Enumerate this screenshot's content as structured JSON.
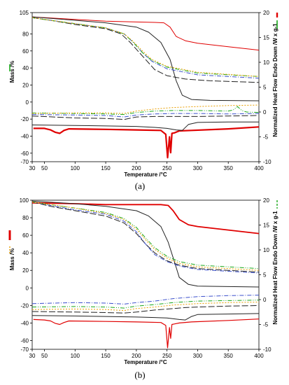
{
  "chart_data": [
    {
      "type": "line",
      "caption": "(a)",
      "xlabel": "Temperature /°C",
      "ylabel": "Mass /%",
      "y2label": "Normalized Heat Flow Endo Down /W x g-1",
      "xlim": [
        30,
        400
      ],
      "ylim": [
        -70,
        105
      ],
      "y2lim": [
        -10,
        20
      ],
      "xticks": [
        30,
        50,
        100,
        150,
        200,
        250,
        300,
        350,
        400
      ],
      "yticks": [
        105,
        80,
        60,
        40,
        20,
        0,
        -20,
        -40,
        -60,
        -70
      ],
      "y2ticks": [
        20,
        15,
        10,
        5,
        0,
        -5,
        -10
      ],
      "grid": false,
      "legend": "side markers",
      "legend_colors": {
        "left": "#19a819",
        "right_top": "#e00000",
        "right_bottom": "#19a819"
      },
      "series": [
        {
          "axis": "left",
          "color": "#e00000",
          "dash": "",
          "width": 1,
          "x": [
            30,
            100,
            150,
            200,
            230,
            245,
            255,
            265,
            280,
            300,
            350,
            400
          ],
          "y": [
            100,
            97,
            95,
            94,
            93.5,
            93,
            88,
            77,
            72,
            69,
            65,
            61
          ]
        },
        {
          "axis": "left",
          "color": "#222222",
          "dash": "",
          "width": 1,
          "x": [
            30,
            100,
            150,
            200,
            220,
            240,
            255,
            265,
            275,
            290,
            320,
            400
          ],
          "y": [
            100,
            96,
            93,
            88,
            82,
            70,
            50,
            25,
            8,
            3,
            2,
            1.5
          ]
        },
        {
          "axis": "left",
          "color": "#222222",
          "dash": "9,3",
          "width": 1,
          "x": [
            30,
            60,
            100,
            150,
            175,
            190,
            205,
            215,
            230,
            250,
            280,
            320,
            400
          ],
          "y": [
            99,
            96,
            91,
            86,
            80,
            70,
            58,
            50,
            38,
            31,
            27,
            25,
            23
          ]
        },
        {
          "axis": "left",
          "color": "#3a4fcc",
          "dash": "6,2,1,2",
          "width": 1,
          "x": [
            30,
            60,
            100,
            150,
            180,
            195,
            210,
            225,
            250,
            300,
            400
          ],
          "y": [
            99,
            96,
            92,
            87,
            80,
            70,
            58,
            48,
            39,
            32,
            28
          ]
        },
        {
          "axis": "left",
          "color": "#19a819",
          "dash": "6,2,1,2,1,2",
          "width": 1,
          "x": [
            30,
            60,
            100,
            150,
            180,
            195,
            210,
            225,
            250,
            300,
            400
          ],
          "y": [
            99,
            96,
            92,
            87,
            80,
            70,
            58,
            49,
            41,
            34,
            30
          ]
        },
        {
          "axis": "left",
          "color": "#e8a000",
          "dash": "2,2",
          "width": 1,
          "x": [
            30,
            60,
            100,
            150,
            180,
            195,
            210,
            225,
            250,
            300,
            400
          ],
          "y": [
            99,
            96,
            92,
            87,
            80,
            71,
            60,
            50,
            42,
            35,
            30
          ]
        },
        {
          "axis": "right",
          "color": "#e00000",
          "dash": "",
          "width": 2.2,
          "x": [
            32,
            50,
            60,
            68,
            75,
            82,
            90,
            150,
            200,
            240,
            248,
            251,
            254,
            256,
            258,
            262,
            270,
            290,
            350,
            400
          ],
          "y": [
            -3.3,
            -3.3,
            -3.6,
            -4.1,
            -4.3,
            -3.7,
            -3.4,
            -3.5,
            -3.6,
            -3.7,
            -4.5,
            -9.2,
            -5.0,
            -8.2,
            -4.3,
            -4.2,
            -3.8,
            -3.7,
            -3.4,
            -3.0
          ]
        },
        {
          "axis": "right",
          "color": "#222222",
          "dash": "",
          "width": 1,
          "x": [
            30,
            100,
            150,
            200,
            230,
            250,
            265,
            275,
            285,
            300,
            350,
            400
          ],
          "y": [
            -2.6,
            -2.7,
            -2.8,
            -2.9,
            -3.1,
            -3.3,
            -3.6,
            -3.7,
            -2.5,
            -2.1,
            -2.0,
            -2.0
          ]
        },
        {
          "axis": "right",
          "color": "#222222",
          "dash": "9,3",
          "width": 1,
          "x": [
            30,
            100,
            150,
            180,
            200,
            230,
            260,
            300,
            350,
            400
          ],
          "y": [
            -0.8,
            -1.2,
            -1.3,
            -1.5,
            -1.0,
            -0.9,
            -0.9,
            -0.9,
            -0.8,
            -0.7
          ]
        },
        {
          "axis": "right",
          "color": "#3a4fcc",
          "dash": "6,2,1,2",
          "width": 1,
          "x": [
            30,
            100,
            150,
            180,
            200,
            230,
            260,
            300,
            350,
            400
          ],
          "y": [
            -0.5,
            -0.6,
            -0.7,
            -1.0,
            -0.6,
            -0.4,
            -0.3,
            -0.3,
            -0.4,
            -0.3
          ]
        },
        {
          "axis": "right",
          "color": "#19a819",
          "dash": "6,2,1,2,1,2",
          "width": 1,
          "x": [
            30,
            100,
            150,
            180,
            200,
            230,
            260,
            300,
            350,
            358,
            365,
            372,
            380,
            400
          ],
          "y": [
            -0.2,
            -0.3,
            -0.4,
            -0.5,
            -0.1,
            0.2,
            0.3,
            0.3,
            0.2,
            0.4,
            1.1,
            0.3,
            0.0,
            -0.1
          ]
        },
        {
          "axis": "right",
          "color": "#e8a000",
          "dash": "2,2",
          "width": 1,
          "x": [
            30,
            100,
            150,
            180,
            200,
            230,
            260,
            300,
            350,
            400
          ],
          "y": [
            -0.3,
            -0.2,
            -0.2,
            -0.3,
            0.2,
            0.6,
            0.9,
            1.1,
            1.3,
            1.4
          ]
        }
      ]
    },
    {
      "type": "line",
      "caption": "(b)",
      "xlabel": "Temperature /°C",
      "ylabel": "Mass /%",
      "y2label": "Normalized Heat Flow Endo Down /W x g-1",
      "xlim": [
        30,
        400
      ],
      "ylim": [
        -70,
        100
      ],
      "y2lim": [
        -10,
        20
      ],
      "xticks": [
        30,
        50,
        100,
        150,
        200,
        250,
        300,
        350,
        400
      ],
      "yticks": [
        100,
        80,
        60,
        40,
        20,
        0,
        -20,
        -40,
        -60,
        -70
      ],
      "y2ticks": [
        20,
        15,
        10,
        5,
        0,
        -5,
        -10
      ],
      "grid": false,
      "legend": "side markers",
      "legend_colors": {
        "left_top": "#e00000",
        "left_bottom": "#e8a000",
        "right": "#19a819"
      },
      "series": [
        {
          "axis": "left",
          "color": "#e00000",
          "dash": "",
          "width": 1.8,
          "x": [
            30,
            100,
            150,
            200,
            240,
            252,
            260,
            270,
            285,
            300,
            350,
            400
          ],
          "y": [
            97,
            96,
            95,
            95,
            95,
            94,
            88,
            78,
            72,
            70,
            66,
            62
          ]
        },
        {
          "axis": "left",
          "color": "#222222",
          "dash": "",
          "width": 1,
          "x": [
            30,
            100,
            150,
            200,
            220,
            240,
            252,
            262,
            270,
            285,
            300,
            400
          ],
          "y": [
            99,
            96,
            93,
            88,
            82,
            70,
            52,
            30,
            12,
            4,
            2,
            1
          ]
        },
        {
          "axis": "left",
          "color": "#222222",
          "dash": "9,3",
          "width": 1,
          "x": [
            30,
            60,
            100,
            150,
            180,
            200,
            215,
            230,
            250,
            270,
            300,
            350,
            400
          ],
          "y": [
            98,
            93,
            88,
            82,
            74,
            62,
            50,
            40,
            31,
            26,
            22,
            20,
            18
          ]
        },
        {
          "axis": "left",
          "color": "#3a4fcc",
          "dash": "6,2,1,2",
          "width": 1,
          "x": [
            30,
            60,
            100,
            150,
            180,
            200,
            215,
            230,
            250,
            270,
            300,
            350,
            400
          ],
          "y": [
            98,
            94,
            89,
            84,
            76,
            64,
            50,
            38,
            30,
            25,
            21,
            19,
            17
          ]
        },
        {
          "axis": "left",
          "color": "#19a819",
          "dash": "6,2,1,2,1,2",
          "width": 1,
          "x": [
            30,
            60,
            100,
            150,
            180,
            200,
            215,
            230,
            250,
            270,
            300,
            350,
            400
          ],
          "y": [
            98,
            95,
            91,
            86,
            79,
            69,
            57,
            46,
            36,
            30,
            26,
            24,
            22
          ]
        },
        {
          "axis": "left",
          "color": "#e8a000",
          "dash": "2,2",
          "width": 1,
          "x": [
            30,
            60,
            100,
            150,
            180,
            200,
            215,
            230,
            250,
            270,
            300,
            350,
            400
          ],
          "y": [
            98,
            95,
            91,
            85,
            78,
            67,
            55,
            44,
            34,
            28,
            24,
            22,
            20
          ]
        },
        {
          "axis": "right",
          "color": "#e00000",
          "dash": "",
          "width": 1.2,
          "x": [
            32,
            50,
            60,
            68,
            75,
            82,
            90,
            150,
            200,
            240,
            248,
            251,
            254,
            256,
            258,
            262,
            270,
            290,
            350,
            400
          ],
          "y": [
            -4.0,
            -4.1,
            -4.3,
            -4.8,
            -5.0,
            -4.6,
            -4.3,
            -4.4,
            -4.5,
            -4.6,
            -5.2,
            -9.7,
            -5.6,
            -7.8,
            -5.0,
            -4.9,
            -4.7,
            -4.5,
            -4.2,
            -3.9
          ]
        },
        {
          "axis": "right",
          "color": "#222222",
          "dash": "",
          "width": 1,
          "x": [
            30,
            100,
            150,
            200,
            230,
            250,
            270,
            280,
            290,
            300,
            350,
            400
          ],
          "y": [
            -3.2,
            -3.3,
            -3.4,
            -3.5,
            -3.6,
            -3.7,
            -4.0,
            -4.1,
            -3.4,
            -3.0,
            -2.9,
            -2.8
          ]
        },
        {
          "axis": "right",
          "color": "#222222",
          "dash": "9,3",
          "width": 1,
          "x": [
            30,
            100,
            150,
            180,
            200,
            230,
            260,
            280,
            300,
            350,
            400
          ],
          "y": [
            -2.4,
            -2.5,
            -2.6,
            -2.7,
            -2.5,
            -2.1,
            -1.8,
            -1.6,
            -1.5,
            -1.3,
            -1.2
          ]
        },
        {
          "axis": "right",
          "color": "#3a4fcc",
          "dash": "6,2,1,2",
          "width": 1,
          "x": [
            30,
            100,
            150,
            180,
            200,
            230,
            260,
            300,
            350,
            400
          ],
          "y": [
            -0.8,
            -0.6,
            -0.7,
            -0.9,
            -0.6,
            -0.3,
            0.2,
            0.6,
            0.8,
            0.9
          ]
        },
        {
          "axis": "right",
          "color": "#19a819",
          "dash": "6,2,1,2,1,2",
          "width": 1,
          "x": [
            30,
            100,
            150,
            180,
            200,
            230,
            260,
            300,
            350,
            400
          ],
          "y": [
            -1.5,
            -1.4,
            -1.5,
            -1.7,
            -1.3,
            -1.0,
            -0.6,
            -0.3,
            -0.2,
            -0.1
          ]
        },
        {
          "axis": "right",
          "color": "#e8a000",
          "dash": "2,2",
          "width": 1,
          "x": [
            30,
            100,
            150,
            180,
            200,
            230,
            260,
            300,
            350,
            400
          ],
          "y": [
            -2.0,
            -1.9,
            -2.0,
            -2.2,
            -1.8,
            -1.5,
            -1.1,
            -0.8,
            -0.6,
            -0.5
          ]
        }
      ]
    }
  ]
}
